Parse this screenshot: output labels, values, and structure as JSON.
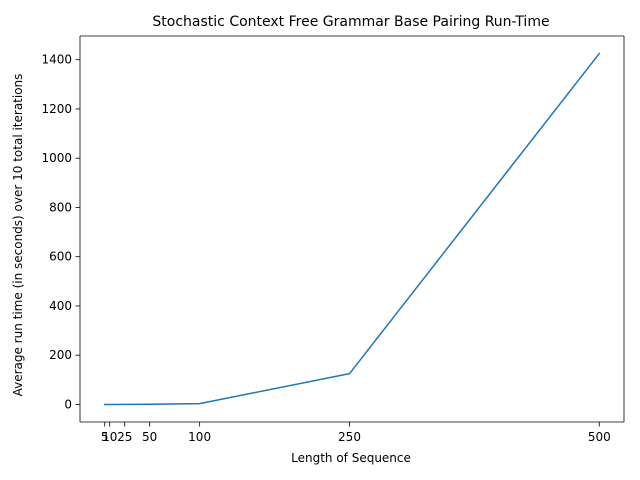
{
  "chart_data": {
    "type": "line",
    "title": "Stochastic Context Free Grammar Base Pairing Run-Time",
    "xlabel": "Length of Sequence",
    "ylabel": "Average run time (in seconds) over 10 total iterations",
    "x": [
      5,
      10,
      25,
      50,
      100,
      250,
      500
    ],
    "series": [
      {
        "values": [
          0.01,
          0.05,
          0.2,
          0.8,
          3.5,
          125,
          1425
        ],
        "color": "#1f77b4"
      }
    ],
    "xticks": [
      5,
      10,
      25,
      50,
      100,
      250,
      500
    ],
    "xtick_labels": [
      "5",
      "10",
      "25",
      "50",
      "100",
      "250",
      "500"
    ],
    "yticks": [
      0,
      200,
      400,
      600,
      800,
      1000,
      1200,
      1400
    ],
    "ytick_labels": [
      "0",
      "200",
      "400",
      "600",
      "800",
      "1000",
      "1200",
      "1400"
    ],
    "xlim": [
      -19.75,
      524.75
    ],
    "ylim": [
      -71.25,
      1496.25
    ],
    "grid": false,
    "legend": false
  }
}
